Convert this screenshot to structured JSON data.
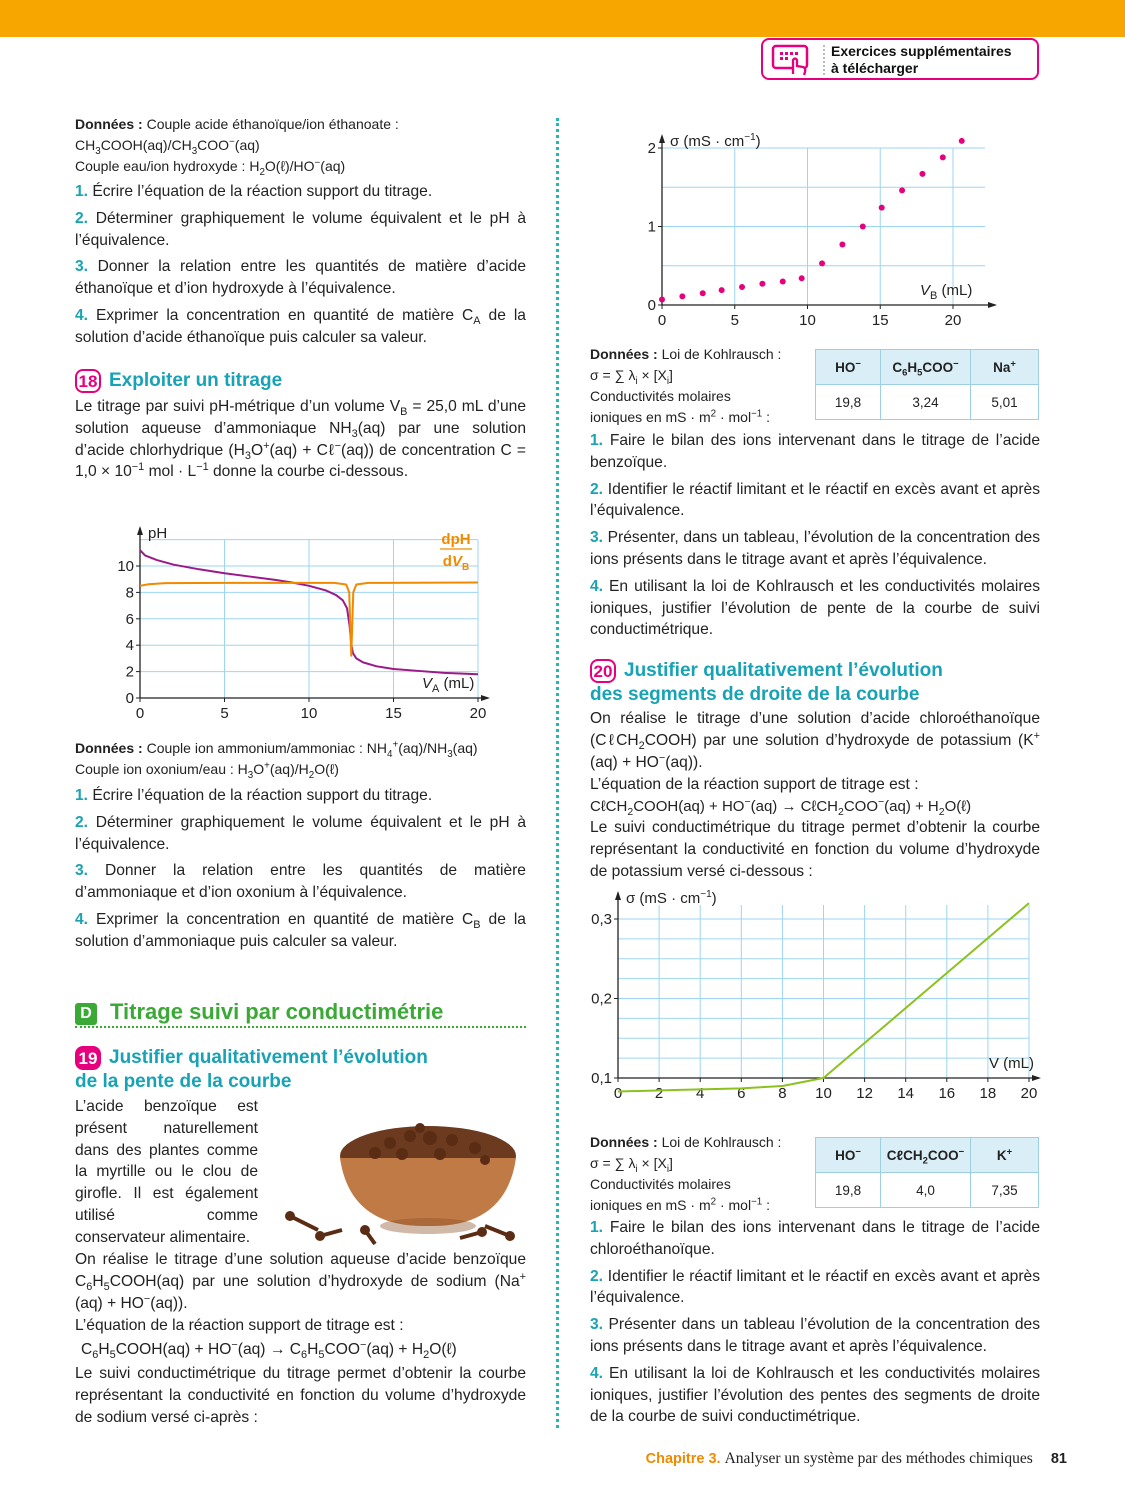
{
  "header": {
    "download_label_1": "Exercices supplémentaires",
    "download_label_2": "à télécharger",
    "accent": "#f7a600",
    "pink": "#e6007e"
  },
  "left": {
    "ex17": {
      "data_label": "Données :",
      "data_lines": [
        "Couple acide éthanoïque/ion éthanoate :",
        "CH_{3}COOH(aq)/CH_{3}COO^{−}(aq)",
        "Couple eau/ion hydroxyde : H_{2}O(ℓ)/HO^{−}(aq)"
      ],
      "questions": [
        {
          "num": "1.",
          "text": "Écrire l’équation de la réaction support du titrage."
        },
        {
          "num": "2.",
          "text": "Déterminer graphiquement le volume équivalent et le pH à l’équivalence."
        },
        {
          "num": "3.",
          "text": "Donner la relation entre les quantités de matière d’acide éthanoïque et d’ion hydroxyde à l’équivalence."
        },
        {
          "num": "4.",
          "text": "Exprimer la concentration en quantité de matière C_{A} de la solution d’acide éthanoïque puis calculer sa valeur."
        }
      ]
    },
    "ex18": {
      "num": "18",
      "title": "Exploiter un titrage",
      "intro": "Le titrage par suivi pH-métrique d’un volume V_{B} = 25,0 mL d’une solution aqueuse d’ammoniaque NH_{3}(aq) par une solution d’acide chlorhydrique (H_{3}O^{+}(aq) + Cℓ^{−}(aq)) de concentration C = 1,0 × 10^{−1} mol · L^{−1} donne la courbe ci-dessous.",
      "data_label": "Données :",
      "data_lines": [
        "Couple ion ammonium/ammoniac : NH_{4}^{+}(aq)/NH_{3}(aq)",
        "Couple ion oxonium/eau : H_{3}O^{+}(aq)/H_{2}O(ℓ)"
      ],
      "questions": [
        {
          "num": "1.",
          "text": "Écrire l’équation de la réaction support du titrage."
        },
        {
          "num": "2.",
          "text": "Déterminer graphiquement le volume équivalent et le pH à l’équivalence."
        },
        {
          "num": "3.",
          "text": "Donner la relation entre les quantités de matière d’ammoniaque et d’ion oxonium à l’équivalence."
        },
        {
          "num": "4.",
          "text": "Exprimer la concentration en quantité de matière C_{B} de la solution d’ammoniaque puis calculer sa valeur."
        }
      ]
    },
    "section": {
      "letter": "D",
      "title": "Titrage suivi par conductimétrie"
    },
    "ex19": {
      "num": "19",
      "title_1": "Justifier qualitativement l’évolution",
      "title_2": "de la pente de la courbe",
      "intro_side": "L’acide benzoïque est présent naturellement dans des plantes comme la myrtille ou le clou de girofle. Il est également utilisé comme conservateur alimentaire.",
      "intro_rest": "On réalise le titrage d’une solution aqueuse d’acide benzoïque C_{6}H_{5}COOH(aq) par une solution d’hydroxyde de sodium (Na^{+}(aq) + HO^{−}(aq)).",
      "eq_label": "L’équation de la réaction support de titrage est :",
      "equation": "C_{6}H_{5}COOH(aq) + HO^{−}(aq) → C_{6}H_{5}COO^{−}(aq) + H_{2}O(ℓ)",
      "after": "Le suivi conductimétrique du titrage permet d’obtenir la courbe représentant la conductivité en fonction du volume d’hydroxyde de sodium versé ci-après :"
    }
  },
  "right": {
    "ex19_cont": {
      "data_label": "Données :",
      "kohl": "Loi de Kohlrausch :",
      "formula": "σ = ∑ λ_{i} × [X_{i}]",
      "cond_1": "Conductivités molaires",
      "cond_2": "ioniques en mS · m^{2} · mol^{−1} :",
      "table": {
        "headers": [
          "HO^{−}",
          "C_{6}H_{5}COO^{−}",
          "Na^{+}"
        ],
        "values": [
          "19,8",
          "3,24",
          "5,01"
        ]
      },
      "questions": [
        {
          "num": "1.",
          "text": "Faire le bilan des ions intervenant dans le titrage de l’acide benzoïque."
        },
        {
          "num": "2.",
          "text": "Identifier le réactif limitant et le réactif en excès avant et après l’équivalence."
        },
        {
          "num": "3.",
          "text": "Présenter, dans un tableau, l’évolution de la concentration des ions présents dans le titrage avant et après l’équivalence."
        },
        {
          "num": "4.",
          "text": "En utilisant la loi de Kohlrausch et les conductivités molaires ioniques, justifier l’évolution de pente de la courbe de suivi conductimétrique."
        }
      ]
    },
    "ex20": {
      "num": "20",
      "title_1": "Justifier qualitativement l’évolution",
      "title_2": "des segments de droite de la courbe",
      "intro": "On réalise le titrage d’une solution d’acide chloroéthanoïque (CℓCH_{2}COOH) par une solution d’hydroxyde de potassium (K^{+}(aq) + HO^{−}(aq)).",
      "eq_label": "L’équation de la réaction support de titrage est :",
      "equation": "CℓCH_{2}COOH(aq) + HO^{−}(aq) → CℓCH_{2}COO^{−}(aq) + H_{2}O(ℓ)",
      "after": "Le suivi conductimétrique du titrage permet d’obtenir la courbe représentant la conductivité en fonction du volume d’hydroxyde de potassium versé ci-dessous :",
      "data_label": "Données :",
      "kohl": "Loi de Kohlrausch :",
      "formula": "σ = ∑ λ_{i} × [X_{i}]",
      "cond_1": "Conductivités molaires",
      "cond_2": "ioniques en mS · m^{2} · mol^{−1} :",
      "table": {
        "headers": [
          "HO^{−}",
          "CℓCH_{2}COO^{−}",
          "K^{+}"
        ],
        "values": [
          "19,8",
          "4,0",
          "7,35"
        ]
      },
      "questions": [
        {
          "num": "1.",
          "text": "Faire le bilan des ions intervenant dans le titrage de l’acide chloroéthanoïque."
        },
        {
          "num": "2.",
          "text": "Identifier le réactif limitant et le réactif en excès avant et après l’équivalence."
        },
        {
          "num": "3.",
          "text": "Présenter dans un tableau l’évolution de la concentration des ions présents dans le titrage avant et après l’équivalence."
        },
        {
          "num": "4.",
          "text": "En utilisant la loi de Kohlrausch et les conductivités molaires ioniques, justifier l’évolution des pentes des segments de droite de la courbe de suivi conductimétrique."
        }
      ]
    }
  },
  "footer": {
    "chapter": "Chapitre 3.",
    "title": "Analyser un système par des méthodes chimiques",
    "page": "81"
  },
  "chart_data": [
    {
      "type": "line",
      "ylabel": "pH",
      "xlabel": "V_A (mL)",
      "xlim": [
        0,
        20
      ],
      "ylim": [
        0,
        12
      ],
      "xticks": [
        "0",
        "5",
        "10",
        "15",
        "20"
      ],
      "yticks": [
        "0",
        "2",
        "4",
        "6",
        "8",
        "10"
      ],
      "grid": true,
      "series": [
        {
          "name": "pH",
          "color": "#9b1a8a",
          "x": [
            0,
            0.3,
            1,
            2,
            3.5,
            5,
            6.5,
            8,
            9,
            10,
            11,
            11.6,
            12,
            12.25,
            12.4,
            12.5,
            12.6,
            12.8,
            13.2,
            14,
            15,
            16.5,
            18,
            20
          ],
          "y": [
            11.2,
            10.8,
            10.45,
            10.1,
            9.75,
            9.45,
            9.2,
            8.95,
            8.75,
            8.5,
            8.15,
            7.8,
            7.4,
            6.8,
            5.5,
            4.1,
            3.4,
            3.0,
            2.7,
            2.4,
            2.2,
            2.05,
            1.9,
            1.8
          ]
        },
        {
          "name": "dpH/dV_B",
          "color": "#f08a00",
          "x": [
            0,
            0.5,
            1.5,
            5,
            11.5,
            12.2,
            12.38,
            12.5,
            12.62,
            12.8,
            13.5,
            20
          ],
          "y": [
            8.5,
            8.62,
            8.7,
            8.72,
            8.72,
            8.6,
            8.0,
            3.2,
            8.0,
            8.6,
            8.72,
            8.75
          ]
        }
      ]
    },
    {
      "type": "scatter",
      "ylabel": "σ (mS · cm^−1)",
      "xlabel": "V_B (mL)",
      "xlim": [
        0,
        22
      ],
      "ylim": [
        0,
        2.2
      ],
      "xticks": [
        "0",
        "5",
        "10",
        "15",
        "20"
      ],
      "yticks": [
        "0",
        "1",
        "2"
      ],
      "grid": true,
      "color": "#e6007e",
      "x": [
        0,
        1.4,
        2.8,
        4.1,
        5.5,
        6.9,
        8.3,
        9.6,
        11,
        12.4,
        13.8,
        15.1,
        16.5,
        17.9,
        19.3,
        20.6
      ],
      "y": [
        0.07,
        0.11,
        0.15,
        0.19,
        0.23,
        0.27,
        0.3,
        0.34,
        0.53,
        0.77,
        1.0,
        1.24,
        1.46,
        1.67,
        1.88,
        2.09
      ]
    },
    {
      "type": "line",
      "ylabel": "σ (mS · cm^−1)",
      "xlabel": "V (mL)",
      "xlim": [
        0,
        20
      ],
      "ylim": [
        0.1,
        0.3
      ],
      "xticks": [
        "0",
        "2",
        "4",
        "6",
        "8",
        "10",
        "12",
        "14",
        "16",
        "18",
        "20"
      ],
      "yticks": [
        "0,1",
        "0,2",
        "0,3"
      ],
      "grid": true,
      "color": "#8cc11f",
      "x": [
        0,
        3,
        6,
        8,
        9,
        10,
        20
      ],
      "y": [
        0.083,
        0.085,
        0.087,
        0.09,
        0.095,
        0.1,
        0.32
      ]
    }
  ]
}
